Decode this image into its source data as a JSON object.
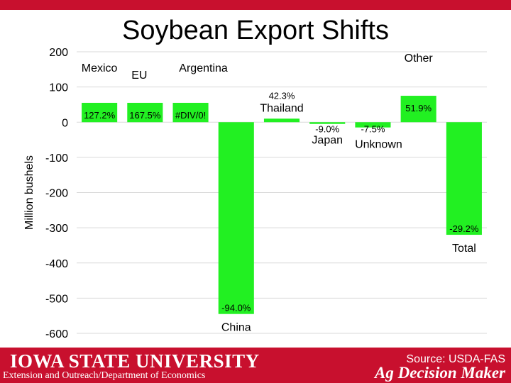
{
  "title": "Soybean Export Shifts",
  "footer": {
    "university": "IOWA STATE UNIVERSITY",
    "extension": "Extension and Outreach/Department of Economics",
    "source": "Source: USDA-FAS",
    "brand": "Ag Decision Maker"
  },
  "colors": {
    "bar": "#22f022",
    "footer": "#c8102e",
    "grid": "#d9d9d9"
  },
  "chart_data": {
    "type": "bar",
    "ylabel": "Million bushels",
    "ylim": [
      -600,
      200
    ],
    "yticks": [
      200,
      100,
      0,
      -100,
      -200,
      -300,
      -400,
      -500,
      -600
    ],
    "grid": true,
    "categories": [
      "Mexico",
      "EU",
      "Argentina",
      "China",
      "Thailand",
      "Japan",
      "Unknown",
      "Other",
      "Total"
    ],
    "values": [
      55,
      55,
      55,
      -545,
      10,
      -5,
      -15,
      75,
      -320
    ],
    "data_labels": [
      "127.2%",
      "167.5%",
      "#DIV/0!",
      "-94.0%",
      "42.3%",
      "-9.0%",
      "-7.5%",
      "51.9%",
      "-29.2%"
    ]
  }
}
